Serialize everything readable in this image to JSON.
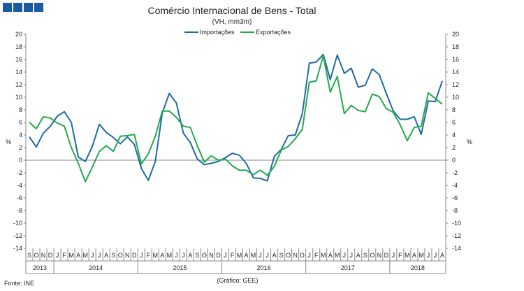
{
  "header": {
    "logo_colors": [
      "#1a5aa0",
      "#1a5aa0",
      "#1a5aa0",
      "#1a5aa0"
    ]
  },
  "footer": {
    "source": "Fonte: INE",
    "credit": "(Gráfico: GEE)"
  },
  "chart_data": {
    "type": "line",
    "title": "Comércio Internacional de Bens - Total",
    "subtitle": "(VH, mm3m)",
    "ylabel": "%",
    "ylabel_right": "%",
    "ylim": [
      -14,
      20
    ],
    "yticks": [
      -14,
      -12,
      -10,
      -8,
      -6,
      -4,
      -2,
      0,
      2,
      4,
      6,
      8,
      10,
      12,
      14,
      16,
      18,
      20
    ],
    "grid": false,
    "legend": "top-center",
    "x": [
      "2013-09",
      "2013-10",
      "2013-11",
      "2013-12",
      "2014-01",
      "2014-02",
      "2014-03",
      "2014-04",
      "2014-05",
      "2014-06",
      "2014-07",
      "2014-08",
      "2014-09",
      "2014-10",
      "2014-11",
      "2014-12",
      "2015-01",
      "2015-02",
      "2015-03",
      "2015-04",
      "2015-05",
      "2015-06",
      "2015-07",
      "2015-08",
      "2015-09",
      "2015-10",
      "2015-11",
      "2015-12",
      "2016-01",
      "2016-02",
      "2016-03",
      "2016-04",
      "2016-05",
      "2016-06",
      "2016-07",
      "2016-08",
      "2016-09",
      "2016-10",
      "2016-11",
      "2016-12",
      "2017-01",
      "2017-02",
      "2017-03",
      "2017-04",
      "2017-05",
      "2017-06",
      "2017-07",
      "2017-08",
      "2017-09",
      "2017-10",
      "2017-11",
      "2017-12",
      "2018-01",
      "2018-02",
      "2018-03",
      "2018-04",
      "2018-05",
      "2018-06",
      "2018-07",
      "2018-08"
    ],
    "month_labels": [
      "S",
      "O",
      "N",
      "D",
      "J",
      "F",
      "M",
      "A",
      "M",
      "J",
      "J",
      "A",
      "S",
      "O",
      "N",
      "D",
      "J",
      "F",
      "M",
      "A",
      "M",
      "J",
      "J",
      "A",
      "S",
      "O",
      "N",
      "D",
      "J",
      "F",
      "M",
      "A",
      "M",
      "J",
      "J",
      "A",
      "S",
      "O",
      "N",
      "D",
      "J",
      "F",
      "M",
      "A",
      "M",
      "J",
      "J",
      "A",
      "S",
      "O",
      "N",
      "D",
      "J",
      "F",
      "M",
      "A",
      "M",
      "J",
      "J",
      "A"
    ],
    "year_labels": [
      {
        "label": "2013",
        "start": 0,
        "end": 3
      },
      {
        "label": "2014",
        "start": 4,
        "end": 15
      },
      {
        "label": "2015",
        "start": 16,
        "end": 27
      },
      {
        "label": "2016",
        "start": 28,
        "end": 39
      },
      {
        "label": "2017",
        "start": 40,
        "end": 51
      },
      {
        "label": "2018",
        "start": 52,
        "end": 59
      }
    ],
    "series": [
      {
        "name": "Importações",
        "color": "#1f6aa5",
        "values": [
          3.7,
          2.1,
          4.3,
          5.4,
          7.0,
          7.7,
          6.0,
          0.5,
          -0.2,
          2.2,
          5.7,
          4.4,
          3.6,
          2.6,
          3.7,
          2.5,
          -1.3,
          -3.2,
          -0.2,
          7.5,
          10.6,
          9.1,
          4.3,
          2.8,
          0.2,
          -0.7,
          -0.5,
          -0.2,
          0.4,
          1.1,
          0.8,
          -0.5,
          -2.8,
          -2.9,
          -3.3,
          0.6,
          1.7,
          3.9,
          4.0,
          7.4,
          15.4,
          15.6,
          16.8,
          12.8,
          16.7,
          13.8,
          14.6,
          11.6,
          11.9,
          14.5,
          13.6,
          10.6,
          7.8,
          6.5,
          6.5,
          6.9,
          4.1,
          9.4,
          9.3,
          12.6
        ]
      },
      {
        "name": "Exportações",
        "color": "#22aa4a",
        "values": [
          6.0,
          5.0,
          6.9,
          6.7,
          5.9,
          5.4,
          2.0,
          -0.5,
          -3.4,
          -1.1,
          1.4,
          2.3,
          1.4,
          3.8,
          3.9,
          4.1,
          -0.6,
          1.0,
          3.8,
          7.8,
          7.8,
          6.8,
          5.4,
          5.2,
          2.3,
          -0.3,
          0.7,
          0.0,
          0.2,
          -0.9,
          -1.6,
          -1.6,
          -2.3,
          -1.6,
          -2.4,
          -1.0,
          1.6,
          2.2,
          3.4,
          4.9,
          12.4,
          12.6,
          16.6,
          10.8,
          13.3,
          7.4,
          8.7,
          7.9,
          7.7,
          10.5,
          10.1,
          8.2,
          7.6,
          5.6,
          3.1,
          5.2,
          5.4,
          10.7,
          9.8,
          8.9
        ]
      }
    ]
  }
}
